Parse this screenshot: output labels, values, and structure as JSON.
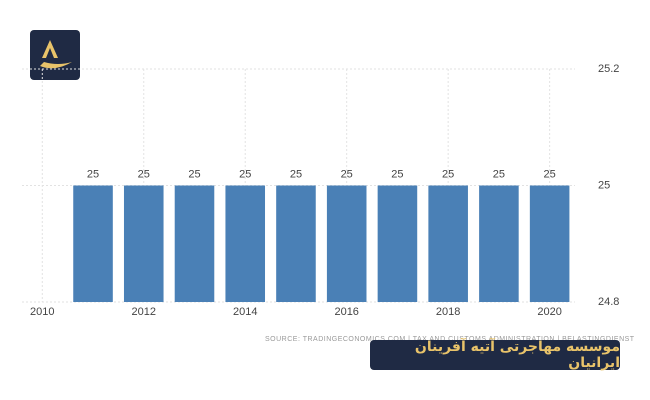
{
  "chart_data": {
    "type": "bar",
    "x": [
      2011,
      2012,
      2013,
      2014,
      2015,
      2016,
      2017,
      2018,
      2019,
      2020
    ],
    "values": [
      25,
      25,
      25,
      25,
      25,
      25,
      25,
      25,
      25,
      25
    ],
    "color": "#4a80b6",
    "xlim": [
      2009.6,
      2020.5
    ],
    "xticks": [
      2010,
      2012,
      2014,
      2016,
      2018,
      2020
    ],
    "ylim": [
      24.8,
      25.2
    ],
    "yticks": [
      24.8,
      25,
      25.2
    ],
    "grid": true,
    "source": "SOURCE: TRADINGECONOMICS.COM | TAX AND CUSTOMS ADMINISTRATION | BELASTINGDIENST",
    "banner": "موسسه مهاجرتی آتیه آفرینان ایرانیان"
  }
}
